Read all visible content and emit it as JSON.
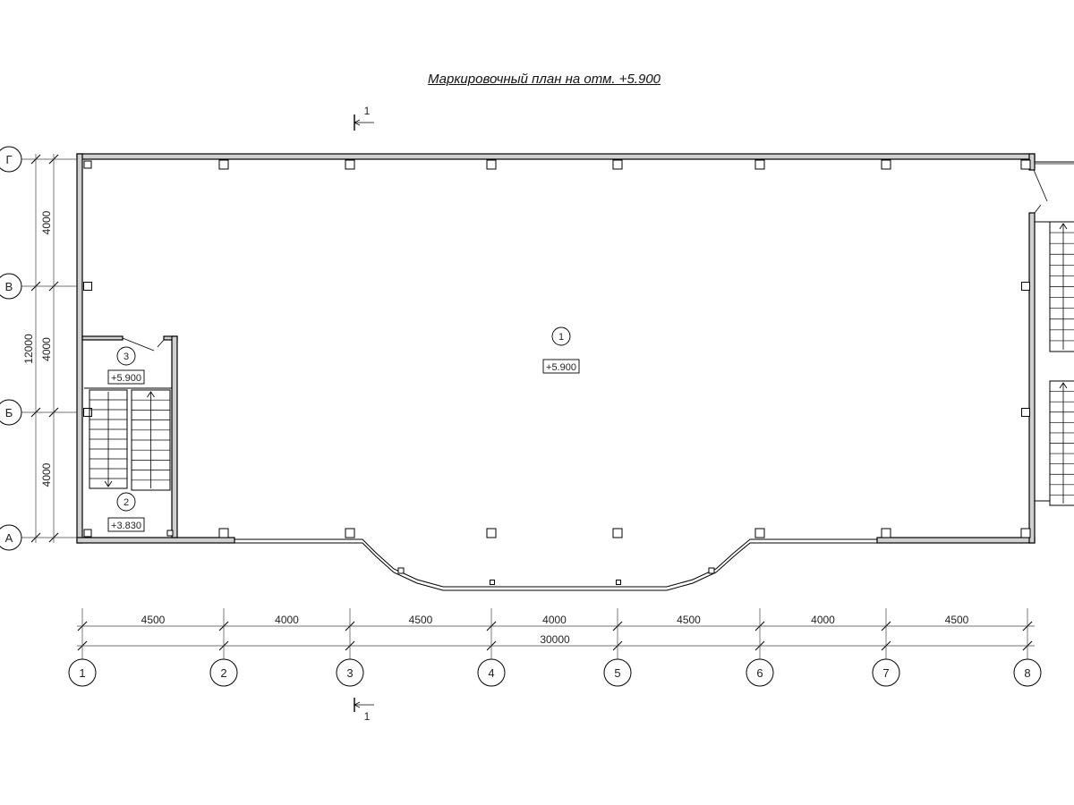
{
  "title": "Маркировочный план на отм. +5.900",
  "axes_columns": [
    "1",
    "2",
    "3",
    "4",
    "5",
    "6",
    "7",
    "8"
  ],
  "axes_rows": [
    "Г",
    "В",
    "Б",
    "А"
  ],
  "dimensions_horizontal": [
    "4500",
    "4000",
    "4500",
    "4000",
    "4500",
    "4000",
    "4500"
  ],
  "dimension_horizontal_total": "30000",
  "dimensions_vertical": [
    "4000",
    "4000",
    "4000"
  ],
  "dimension_vertical_total": "12000",
  "section_mark": "1",
  "rooms": [
    {
      "number": "1",
      "level": "+5.900"
    },
    {
      "number": "3",
      "level": "+5.900"
    },
    {
      "number": "2",
      "level": "+3.830"
    }
  ],
  "colors": {
    "line": "#000000",
    "wall_fill": "#d0d0d0",
    "dim_line": "#444444"
  }
}
